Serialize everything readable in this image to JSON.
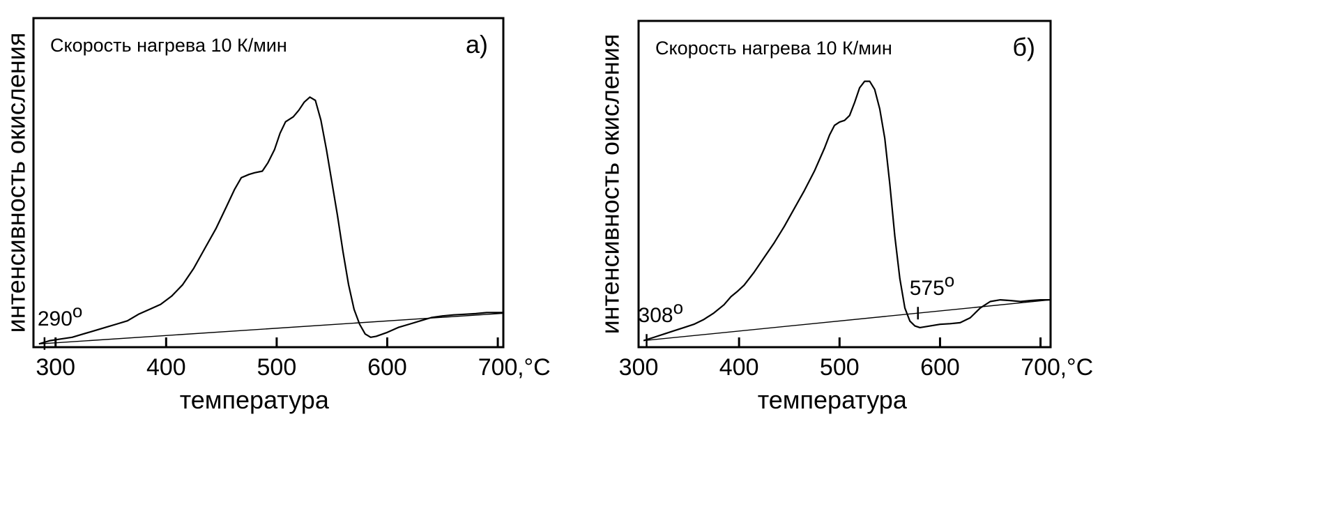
{
  "chart_data": [
    {
      "type": "line",
      "panel_label": "а)",
      "note": "Скорость нагрева 10 К/мин",
      "xlabel": "температура",
      "ylabel": "интенсивность окисления",
      "x_unit": ",°C",
      "xlim": [
        280,
        705
      ],
      "ylim": [
        0,
        100
      ],
      "xticks": [
        300,
        400,
        500,
        600,
        700
      ],
      "xtick_labels": [
        "300",
        "400",
        "500",
        "600",
        "700"
      ],
      "series": [
        {
          "role": "curve",
          "x": [
            285,
            295,
            305,
            315,
            325,
            335,
            345,
            355,
            365,
            375,
            385,
            395,
            405,
            415,
            425,
            435,
            445,
            455,
            462,
            468,
            475,
            480,
            487,
            492,
            498,
            503,
            508,
            515,
            520,
            525,
            530,
            535,
            540,
            545,
            550,
            555,
            560,
            565,
            570,
            575,
            580,
            585,
            590,
            600,
            610,
            620,
            630,
            640,
            650,
            660,
            670,
            680,
            690,
            700,
            705
          ],
          "y": [
            1,
            2,
            2.5,
            3,
            4,
            5,
            6,
            7,
            8,
            10,
            11.5,
            13,
            15.5,
            19,
            24,
            30,
            36,
            43,
            48,
            51.5,
            52.5,
            53,
            53.5,
            56,
            60,
            65,
            68.5,
            70,
            72,
            74.5,
            76,
            75,
            69,
            60,
            50,
            40,
            29,
            19,
            11.5,
            7,
            4,
            3,
            3.3,
            4.5,
            6,
            7,
            8,
            9,
            9.5,
            9.8,
            10,
            10.2,
            10.5,
            10.5,
            10.5
          ]
        },
        {
          "role": "baseline",
          "x": [
            285,
            705
          ],
          "y": [
            1,
            10.3
          ]
        }
      ],
      "annotations": [
        {
          "text": "290",
          "sup": "о",
          "x": 290
        }
      ]
    },
    {
      "type": "line",
      "panel_label": "б)",
      "note": "Скорость нагрева 10 К/мин",
      "xlabel": "температура",
      "ylabel": "интенсивность окисления",
      "x_unit": ",°C",
      "xlim": [
        300,
        710
      ],
      "ylim": [
        0,
        100
      ],
      "xticks": [
        300,
        400,
        500,
        600,
        700
      ],
      "xtick_labels": [
        "300",
        "400",
        "500",
        "600",
        "700"
      ],
      "series": [
        {
          "role": "curve",
          "x": [
            305,
            315,
            325,
            335,
            345,
            355,
            365,
            375,
            385,
            392,
            398,
            405,
            415,
            425,
            435,
            445,
            455,
            465,
            475,
            485,
            490,
            495,
            500,
            505,
            510,
            515,
            520,
            525,
            530,
            535,
            540,
            545,
            550,
            555,
            560,
            565,
            570,
            575,
            580,
            590,
            600,
            610,
            620,
            630,
            640,
            650,
            660,
            670,
            680,
            690,
            700,
            710
          ],
          "y": [
            2,
            3,
            4,
            5,
            6,
            7,
            8.5,
            10.5,
            13,
            15.5,
            17,
            19,
            23,
            27.5,
            32,
            37,
            42.5,
            48,
            54,
            61,
            65,
            68,
            69,
            69.5,
            71,
            75,
            79.5,
            81.5,
            81.5,
            79,
            73,
            64,
            50,
            34,
            21,
            12,
            8,
            6.5,
            6,
            6.5,
            7,
            7.2,
            7.5,
            9,
            12,
            14,
            14.5,
            14.3,
            14,
            14.3,
            14.5,
            14.5
          ]
        },
        {
          "role": "baseline",
          "x": [
            305,
            710
          ],
          "y": [
            2,
            14.5
          ]
        }
      ],
      "annotations": [
        {
          "text": "308",
          "sup": "о",
          "x": 308
        },
        {
          "text": "575",
          "sup": "о",
          "x": 578
        }
      ]
    }
  ]
}
